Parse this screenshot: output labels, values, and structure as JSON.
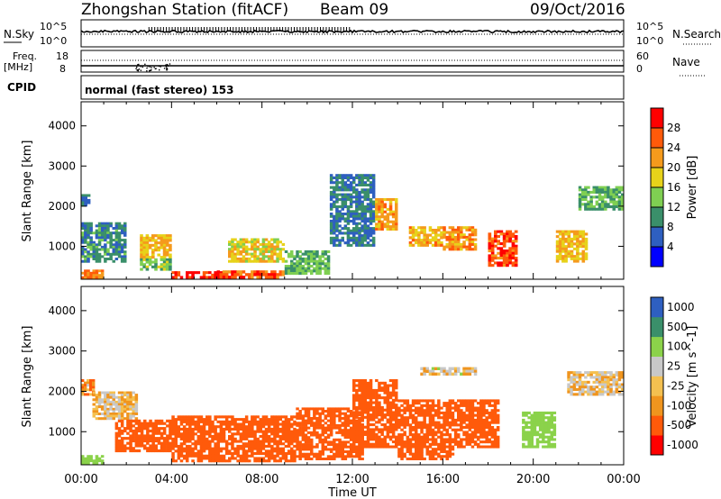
{
  "header": {
    "station": "Zhongshan Station (fitACF)",
    "beam": "Beam 09",
    "date": "09/Oct/2016"
  },
  "noise_panel": {
    "left_label": "N.Sky",
    "right_label": "N.Search",
    "left_ticks": [
      "10^5",
      "10^0"
    ],
    "right_ticks": [
      "10^5",
      "10^0"
    ]
  },
  "freq_panel": {
    "left_label_1": "Freq.",
    "left_label_2": "[MHz]",
    "right_label": "Nave",
    "left_ticks": [
      "18",
      "8"
    ],
    "right_ticks": [
      "60",
      "0"
    ]
  },
  "cpid": {
    "label": "CPID",
    "text": "normal (fast stereo) 153"
  },
  "colors": {
    "power": [
      "#0000ff",
      "#2e5fc0",
      "#3a8f6a",
      "#7fcf52",
      "#e7d21a",
      "#f59a1c",
      "#ff5a0a",
      "#ff0000"
    ],
    "velocity": [
      "#ff0000",
      "#ff5a0a",
      "#f0951e",
      "#f4c050",
      "#c8c8c8",
      "#8bd24a",
      "#3a8f6a",
      "#2e5fc0"
    ]
  },
  "chart_data": [
    {
      "type": "heatmap",
      "name": "power",
      "ylabel": "Slant Range [km]",
      "ylim": [
        180,
        4600
      ],
      "yticks": [
        1000,
        2000,
        3000,
        4000
      ],
      "xlim": [
        0,
        24
      ],
      "colorbar": {
        "label": "Power [dB]",
        "ticks": [
          "4",
          "8",
          "12",
          "16",
          "20",
          "24",
          "28"
        ],
        "range": [
          0,
          32
        ]
      },
      "regions": [
        {
          "t0": 0.0,
          "t1": 1.0,
          "r0": 200,
          "r1": 420,
          "level": 22
        },
        {
          "t0": 0.0,
          "t1": 0.4,
          "r0": 2000,
          "r1": 2300,
          "level": 6
        },
        {
          "t0": 0.0,
          "t1": 2.0,
          "r0": 600,
          "r1": 1600,
          "level": 7
        },
        {
          "t0": 2.6,
          "t1": 4.0,
          "r0": 700,
          "r1": 1300,
          "level": 18
        },
        {
          "t0": 2.6,
          "t1": 4.0,
          "r0": 400,
          "r1": 700,
          "level": 12
        },
        {
          "t0": 4.0,
          "t1": 6.5,
          "r0": 200,
          "r1": 380,
          "level": 26
        },
        {
          "t0": 6.0,
          "t1": 9.0,
          "r0": 200,
          "r1": 400,
          "level": 24
        },
        {
          "t0": 6.5,
          "t1": 9.0,
          "r0": 600,
          "r1": 1200,
          "level": 16
        },
        {
          "t0": 9.0,
          "t1": 11.0,
          "r0": 300,
          "r1": 900,
          "level": 10
        },
        {
          "t0": 11.0,
          "t1": 13.0,
          "r0": 1000,
          "r1": 2800,
          "level": 6
        },
        {
          "t0": 13.0,
          "t1": 14.0,
          "r0": 1400,
          "r1": 2200,
          "level": 20
        },
        {
          "t0": 14.5,
          "t1": 16.0,
          "r0": 1000,
          "r1": 1500,
          "level": 19
        },
        {
          "t0": 16.0,
          "t1": 17.5,
          "r0": 900,
          "r1": 1500,
          "level": 21
        },
        {
          "t0": 18.0,
          "t1": 19.3,
          "r0": 500,
          "r1": 1400,
          "level": 25
        },
        {
          "t0": 21.0,
          "t1": 22.4,
          "r0": 600,
          "r1": 1400,
          "level": 18
        },
        {
          "t0": 22.0,
          "t1": 24.0,
          "r0": 1900,
          "r1": 2500,
          "level": 10
        }
      ]
    },
    {
      "type": "heatmap",
      "name": "velocity",
      "ylabel": "Slant Range [km]",
      "ylim": [
        180,
        4600
      ],
      "yticks": [
        1000,
        2000,
        3000,
        4000
      ],
      "xlim": [
        0,
        24
      ],
      "xticks": [
        "00:00",
        "04:00",
        "08:00",
        "12:00",
        "16:00",
        "20:00",
        "00:00"
      ],
      "xlabel": "Time UT",
      "colorbar": {
        "label": "Velocity [m s^-1]",
        "ticks": [
          "-1000",
          "-500",
          "-100",
          "-25",
          "25",
          "100",
          "500",
          "1000"
        ]
      },
      "regions": [
        {
          "t0": 0.0,
          "t1": 1.0,
          "r0": 200,
          "r1": 420,
          "vel": 300
        },
        {
          "t0": 0.0,
          "t1": 0.6,
          "r0": 1900,
          "r1": 2300,
          "vel": -60
        },
        {
          "t0": 0.5,
          "t1": 2.5,
          "r0": 1300,
          "r1": 2000,
          "vel": 0
        },
        {
          "t0": 1.5,
          "t1": 4.0,
          "r0": 500,
          "r1": 1300,
          "vel": -300
        },
        {
          "t0": 4.0,
          "t1": 9.5,
          "r0": 250,
          "r1": 1400,
          "vel": -400
        },
        {
          "t0": 9.5,
          "t1": 12.5,
          "r0": 300,
          "r1": 1600,
          "vel": -300
        },
        {
          "t0": 12.0,
          "t1": 14.0,
          "r0": 600,
          "r1": 2300,
          "vel": -200
        },
        {
          "t0": 14.0,
          "t1": 16.5,
          "r0": 300,
          "r1": 1800,
          "vel": -250
        },
        {
          "t0": 16.5,
          "t1": 18.5,
          "r0": 600,
          "r1": 1800,
          "vel": -300
        },
        {
          "t0": 15.0,
          "t1": 17.5,
          "r0": 2400,
          "r1": 2600,
          "vel": 10
        },
        {
          "t0": 19.5,
          "t1": 21.0,
          "r0": 600,
          "r1": 1500,
          "vel": 300
        },
        {
          "t0": 21.5,
          "t1": 24.0,
          "r0": 1900,
          "r1": 2500,
          "vel": 0
        }
      ]
    }
  ]
}
